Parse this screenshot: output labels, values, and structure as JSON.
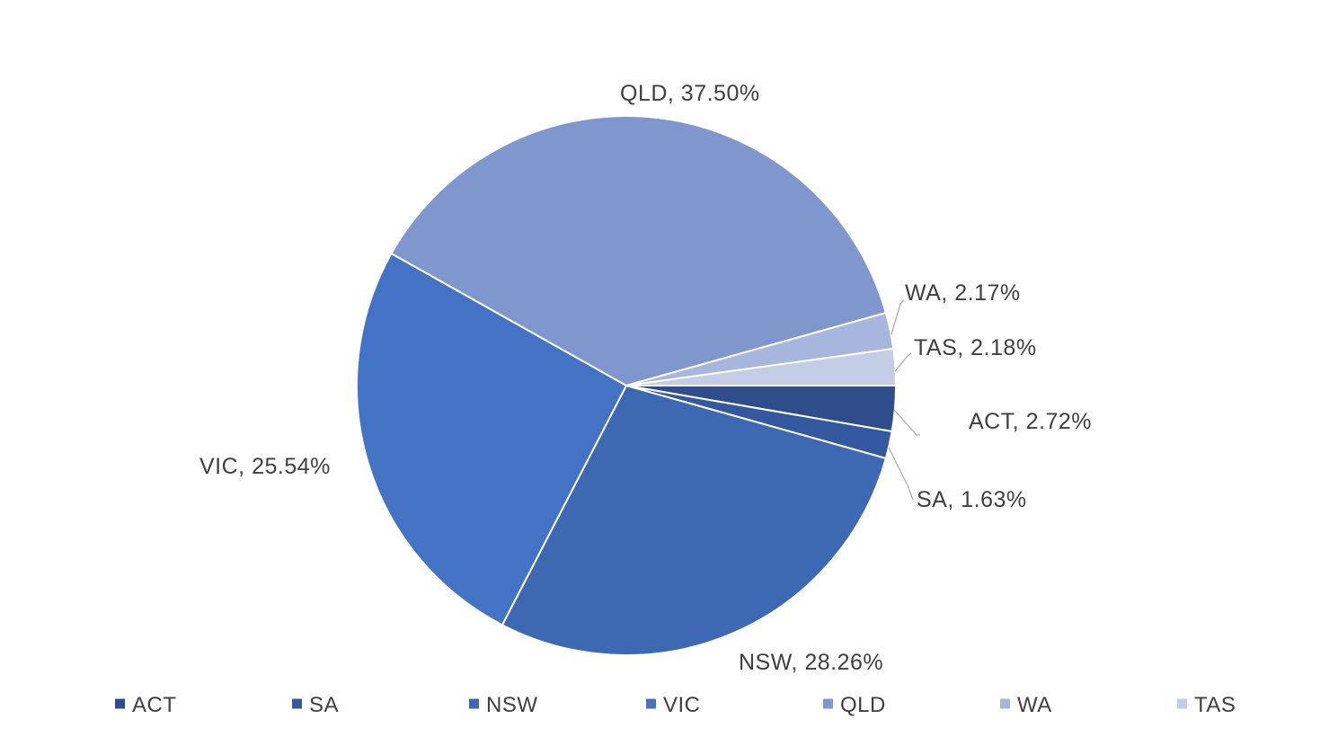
{
  "chart_data": {
    "type": "pie",
    "categories": [
      "ACT",
      "SA",
      "NSW",
      "VIC",
      "QLD",
      "WA",
      "TAS"
    ],
    "values": [
      2.72,
      1.63,
      28.26,
      25.54,
      37.5,
      2.17,
      2.18
    ],
    "labels": [
      "ACT, 2.72%",
      "SA, 1.63%",
      "NSW, 28.26%",
      "VIC, 25.54%",
      "QLD, 37.50%",
      "WA, 2.17%",
      "TAS, 2.18%"
    ],
    "colors": [
      "#2f4d8a",
      "#34589f",
      "#3d68b2",
      "#4472c4",
      "#8097ce",
      "#a7b6dc",
      "#c4cde6"
    ],
    "legend": [
      "ACT",
      "SA",
      "NSW",
      "VIC",
      "QLD",
      "WA",
      "TAS"
    ],
    "legend_position": "bottom",
    "start_angle_deg": 90,
    "direction": "clockwise",
    "title": ""
  }
}
